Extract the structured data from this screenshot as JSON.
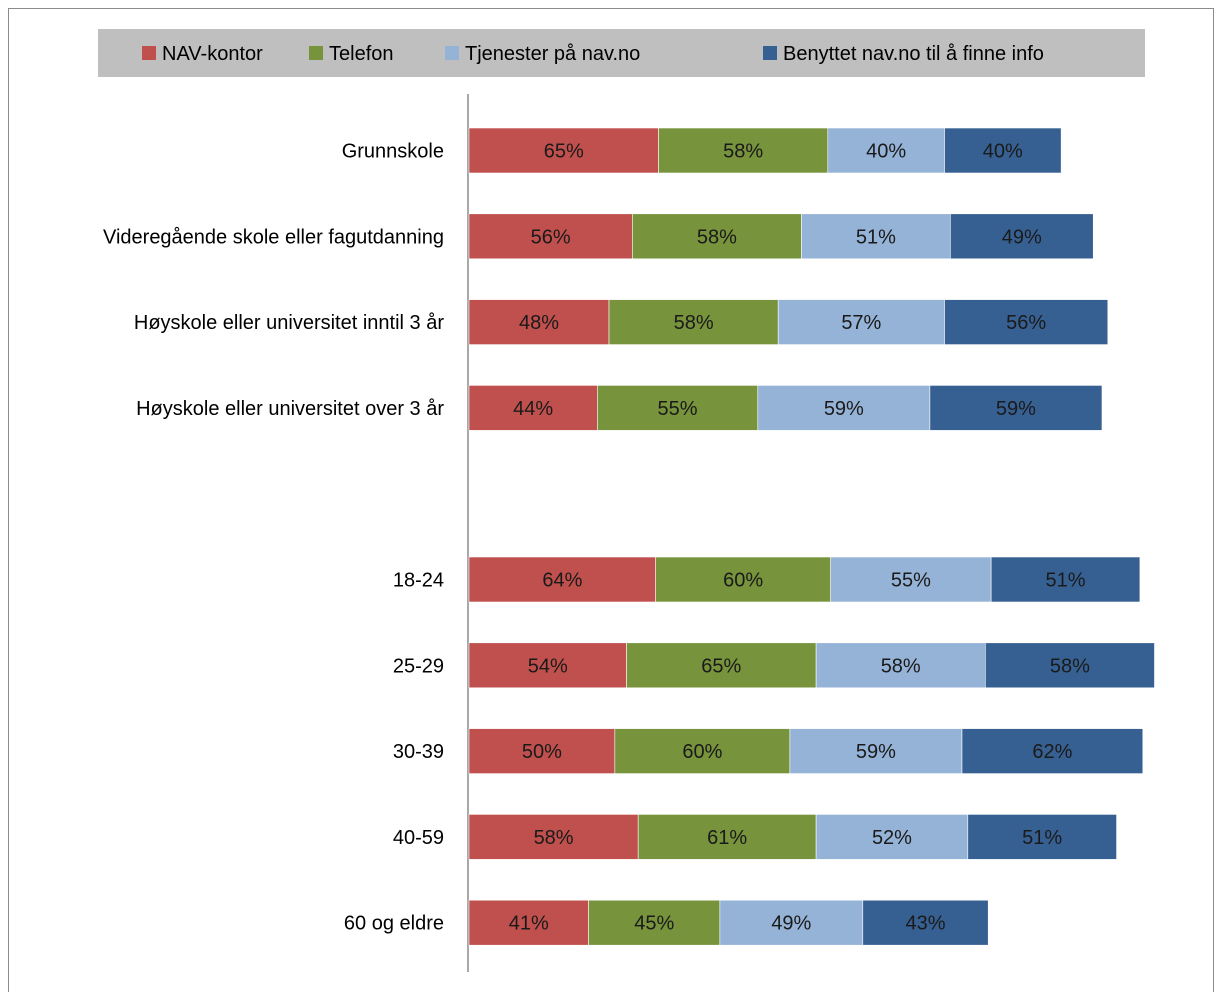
{
  "chart_data": {
    "type": "bar",
    "orientation": "horizontal",
    "stacked": true,
    "legend_position": "top",
    "grid": false,
    "categories": [
      "Grunnskole",
      "Videregående skole eller fagutdanning",
      "Høyskole eller universitet inntil 3 år",
      "Høyskole eller universitet over 3 år",
      "",
      "18-24",
      "25-29",
      "30-39",
      "40-59",
      "60 og eldre"
    ],
    "series": [
      {
        "name": "NAV-kontor",
        "color": "#c0504d",
        "values": [
          65,
          56,
          48,
          44,
          null,
          64,
          54,
          50,
          58,
          41
        ],
        "labels": [
          "65%",
          "56%",
          "48%",
          "44%",
          "",
          "64%",
          "54%",
          "50%",
          "58%",
          "41%"
        ]
      },
      {
        "name": "Telefon",
        "color": "#77933c",
        "values": [
          58,
          58,
          58,
          55,
          null,
          60,
          65,
          60,
          61,
          45
        ],
        "labels": [
          "58%",
          "58%",
          "58%",
          "55%",
          "",
          "60%",
          "65%",
          "60%",
          "61%",
          "45%"
        ]
      },
      {
        "name": "Tjenester på nav.no",
        "color": "#95b3d7",
        "values": [
          40,
          51,
          57,
          59,
          null,
          55,
          58,
          59,
          52,
          49
        ],
        "labels": [
          "40%",
          "51%",
          "57%",
          "59%",
          "",
          "55%",
          "58%",
          "59%",
          "52%",
          "49%"
        ]
      },
      {
        "name": "Benyttet nav.no til å finne info",
        "color": "#376092",
        "values": [
          40,
          49,
          56,
          59,
          null,
          51,
          58,
          62,
          51,
          43
        ],
        "labels": [
          "40%",
          "49%",
          "56%",
          "59%",
          "",
          "51%",
          "58%",
          "62%",
          "51%",
          "43%"
        ]
      }
    ],
    "legend_background": "#bfbfbf"
  }
}
